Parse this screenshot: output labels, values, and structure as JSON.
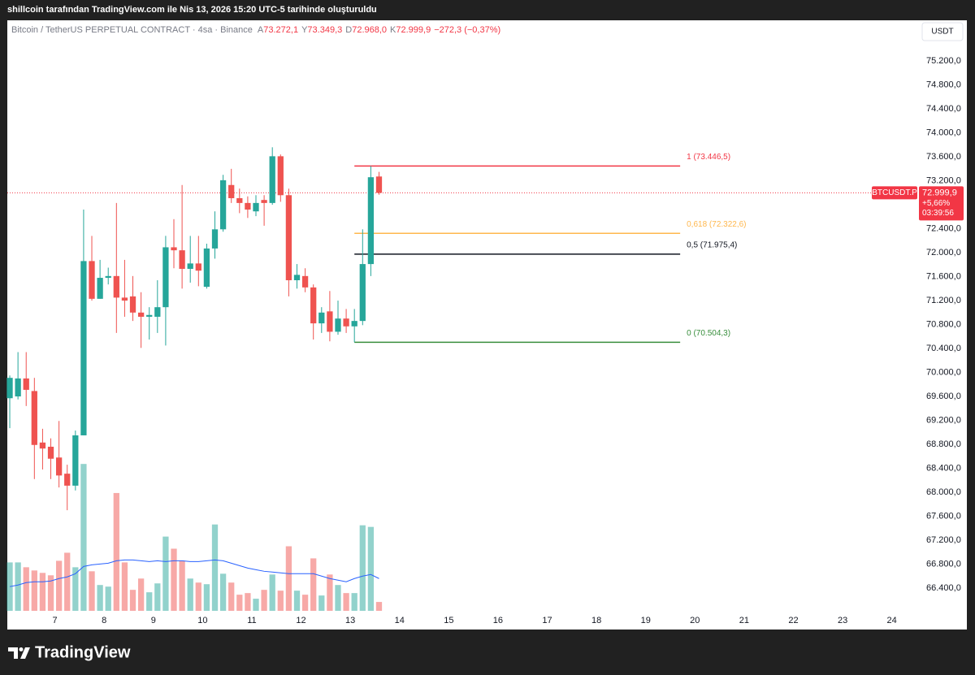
{
  "chart_data": {
    "type": "candlestick",
    "caption": "shillcoin tarafından TradingView.com ile Nis 13, 2026 15:20 UTC-5 tarihinde oluşturuldu",
    "legend": {
      "symbol": "Bitcoin / TetherUS PERPETUAL CONTRACT · 4sa · Binance",
      "fields": [
        {
          "key": "A",
          "text": "73.272,1"
        },
        {
          "key": "Y",
          "text": "73.349,3"
        },
        {
          "key": "D",
          "text": "72.968,0"
        },
        {
          "key": "K",
          "text": "72.999,9"
        }
      ],
      "change": "−272,3 (−0,37%)",
      "value_color": "#f23645"
    },
    "currency_button": "USDT",
    "brand": "TradingView",
    "up_color": "#26a69a",
    "down_color": "#ef5350",
    "candles": {
      "open": [
        69570,
        69600,
        69900,
        69690,
        68830,
        68760,
        68580,
        68310,
        68110,
        68950,
        71860,
        71230,
        71580,
        71610,
        71250,
        71270,
        71000,
        70930,
        70930,
        71090,
        72090,
        72040,
        71730,
        71820,
        71430,
        72070,
        72390,
        73130,
        72910,
        72830,
        72690,
        72880,
        72830,
        73610,
        72960,
        71540,
        71610,
        71420,
        70820,
        71020,
        70680,
        70900,
        70770,
        70860,
        71810,
        73272.1
      ],
      "high": [
        69950,
        70340,
        70340,
        69910,
        69060,
        68900,
        69190,
        68460,
        69030,
        72720,
        72280,
        71880,
        71750,
        72830,
        71880,
        71610,
        71340,
        71090,
        71540,
        72280,
        72560,
        73130,
        72280,
        72280,
        72150,
        72690,
        73300,
        73400,
        73070,
        72940,
        72960,
        72960,
        73760,
        73640,
        73070,
        71810,
        71740,
        71470,
        71090,
        71360,
        71200,
        71060,
        71060,
        72390,
        73446.5,
        73349.3
      ],
      "low": [
        69070,
        69550,
        69440,
        68220,
        68380,
        68220,
        68080,
        67700,
        68030,
        68950,
        71200,
        71230,
        71470,
        70660,
        70930,
        70860,
        70410,
        70550,
        70660,
        70450,
        71740,
        71400,
        71500,
        71440,
        71400,
        71900,
        72350,
        72830,
        72660,
        72580,
        72610,
        72450,
        72800,
        72850,
        71270,
        71400,
        71340,
        70550,
        70660,
        70520,
        70630,
        70660,
        70504.3,
        70790,
        71610,
        72968
      ],
      "close": [
        69910,
        69900,
        69710,
        68790,
        68730,
        68560,
        68280,
        68110,
        68950,
        71860,
        71230,
        71580,
        71610,
        71250,
        71200,
        71000,
        70930,
        70960,
        71090,
        72090,
        72040,
        71730,
        71820,
        71700,
        72070,
        72390,
        73210,
        72910,
        72830,
        72720,
        72830,
        72830,
        73610,
        72960,
        71540,
        71630,
        71420,
        70820,
        71000,
        70680,
        70900,
        70770,
        70860,
        71810,
        73260,
        72999.9
      ]
    },
    "volume": [
      60,
      60,
      54,
      50,
      47,
      44,
      62,
      72,
      54,
      182,
      49,
      32,
      30,
      146,
      60,
      26,
      40,
      23,
      34,
      92,
      77,
      62,
      40,
      35,
      33,
      107,
      46,
      35,
      20,
      22,
      15,
      26,
      45,
      25,
      80,
      25,
      20,
      65,
      19,
      45,
      32,
      22,
      22,
      106,
      104,
      11
    ],
    "volume_ma": [
      30,
      32,
      35,
      36,
      36,
      37,
      40,
      42,
      46,
      55,
      57,
      58,
      59,
      62,
      63,
      63,
      62,
      61,
      62,
      61,
      62,
      62,
      61,
      61,
      62,
      63,
      62,
      59,
      56,
      53,
      51,
      49,
      48,
      47,
      46,
      46,
      46,
      46,
      43,
      40,
      38,
      36,
      40,
      43,
      45,
      40
    ],
    "volume_ma_color": "#2962ff",
    "vlim": [
      0,
      300
    ],
    "xlim": [
      -0.3,
      110.7
    ],
    "xticks": [
      {
        "value": 5.5,
        "label": "7"
      },
      {
        "value": 11.5,
        "label": "8"
      },
      {
        "value": 17.5,
        "label": "9"
      },
      {
        "value": 23.5,
        "label": "10"
      },
      {
        "value": 29.5,
        "label": "11"
      },
      {
        "value": 35.5,
        "label": "12"
      },
      {
        "value": 41.5,
        "label": "13"
      },
      {
        "value": 47.5,
        "label": "14"
      },
      {
        "value": 53.5,
        "label": "15"
      },
      {
        "value": 59.5,
        "label": "16"
      },
      {
        "value": 65.5,
        "label": "17"
      },
      {
        "value": 71.5,
        "label": "18"
      },
      {
        "value": 77.5,
        "label": "19"
      },
      {
        "value": 83.5,
        "label": "20"
      },
      {
        "value": 89.5,
        "label": "21"
      },
      {
        "value": 95.5,
        "label": "22"
      },
      {
        "value": 101.5,
        "label": "23"
      },
      {
        "value": 107.5,
        "label": "24"
      }
    ],
    "ylim": [
      66020,
      75880
    ],
    "yticks": [
      {
        "value": 66400,
        "label": "66.400,0"
      },
      {
        "value": 66800,
        "label": "66.800,0"
      },
      {
        "value": 67200,
        "label": "67.200,0"
      },
      {
        "value": 67600,
        "label": "67.600,0"
      },
      {
        "value": 68000,
        "label": "68.000,0"
      },
      {
        "value": 68400,
        "label": "68.400,0"
      },
      {
        "value": 68800,
        "label": "68.800,0"
      },
      {
        "value": 69200,
        "label": "69.200,0"
      },
      {
        "value": 69600,
        "label": "69.600,0"
      },
      {
        "value": 70000,
        "label": "70.000,0"
      },
      {
        "value": 70400,
        "label": "70.400,0"
      },
      {
        "value": 70800,
        "label": "70.800,0"
      },
      {
        "value": 71200,
        "label": "71.200,0"
      },
      {
        "value": 71600,
        "label": "71.600,0"
      },
      {
        "value": 72000,
        "label": "72.000,0"
      },
      {
        "value": 72400,
        "label": "72.400,0"
      },
      {
        "value": 72800,
        "label": "72.800,0"
      },
      {
        "value": 73200,
        "label": "73.200,0"
      },
      {
        "value": 73600,
        "label": "73.600,0"
      },
      {
        "value": 74000,
        "label": "74.000,0"
      },
      {
        "value": 74400,
        "label": "74.400,0"
      },
      {
        "value": 74800,
        "label": "74.800,0"
      },
      {
        "value": 75200,
        "label": "75.200,0"
      }
    ],
    "fib": {
      "start": 42,
      "end": 81.7,
      "levels": [
        {
          "label": "1 (73.446,5)",
          "value": 73446.5,
          "color": "#f23645"
        },
        {
          "label": "0,618 (72.322,6)",
          "value": 72322.6,
          "color": "#ffb74d"
        },
        {
          "label": "0,5 (71.975,4)",
          "value": 71975.4,
          "color": "#131722"
        },
        {
          "label": "0 (70.504,3)",
          "value": 70504.3,
          "color": "#388e3c"
        }
      ]
    },
    "price_tag": {
      "symbol": "BTCUSDT.P",
      "value": 72999.9,
      "label": "72.999,9",
      "change": "+5,66%",
      "countdown": "03:39:56",
      "color": "#f23645"
    }
  }
}
